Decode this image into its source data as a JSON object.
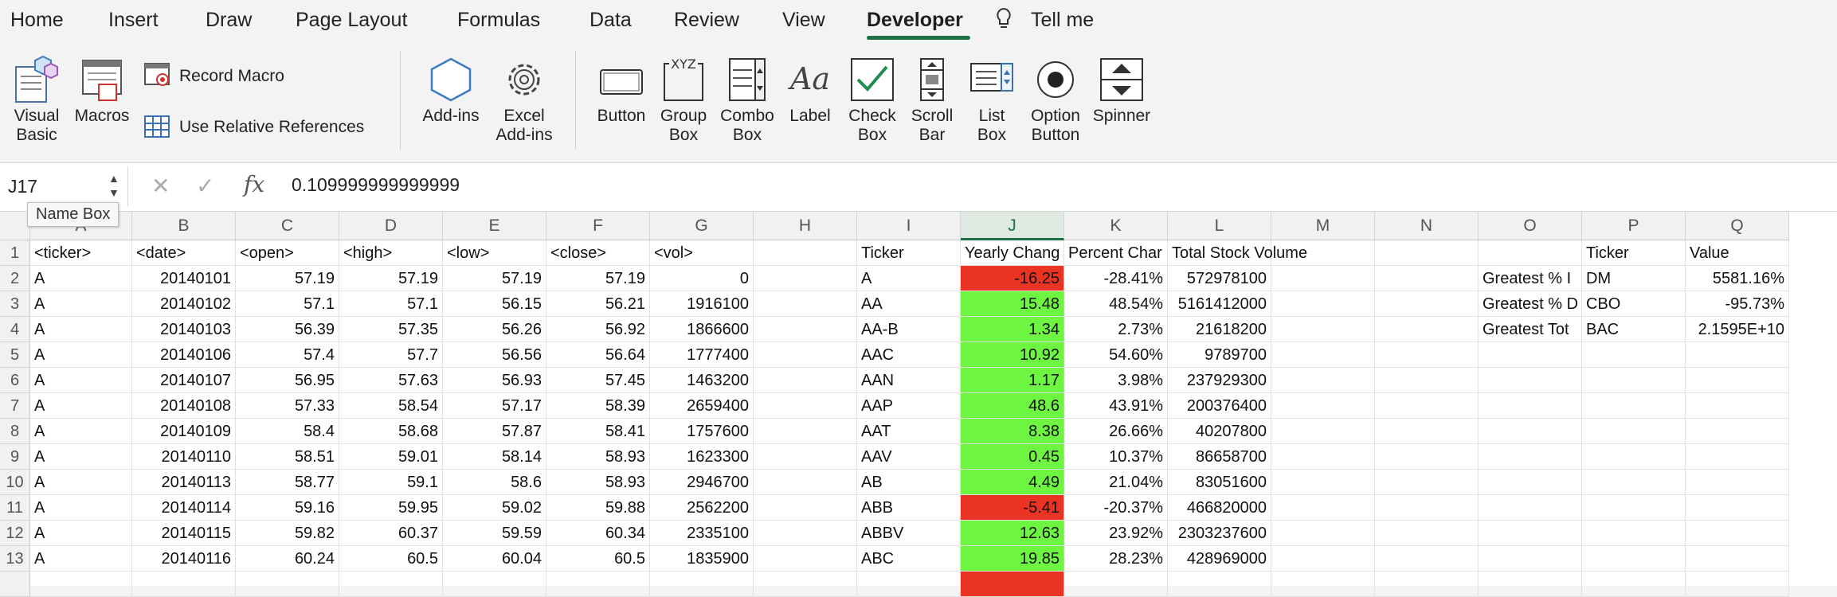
{
  "tabs": [
    "Home",
    "Insert",
    "Draw",
    "Page Layout",
    "Formulas",
    "Data",
    "Review",
    "View",
    "Developer",
    "Tell me"
  ],
  "active_tab": "Developer",
  "ribbon": {
    "visual_basic": [
      "Visual",
      "Basic"
    ],
    "macros": "Macros",
    "record_macro": "Record Macro",
    "use_relative": "Use Relative References",
    "add_ins": "Add-ins",
    "excel_add_ins": [
      "Excel",
      "Add-ins"
    ],
    "button": "Button",
    "group_box": [
      "Group",
      "Box"
    ],
    "combo_box": [
      "Combo",
      "Box"
    ],
    "label": "Label",
    "check_box": [
      "Check",
      "Box"
    ],
    "scroll_bar": [
      "Scroll",
      "Bar"
    ],
    "list_box": [
      "List",
      "Box"
    ],
    "option_button": [
      "Option",
      "Button"
    ],
    "spinner": "Spinner",
    "xyz_text": "XYZ",
    "aa_text": "Aa"
  },
  "formula_bar": {
    "name_box": "J17",
    "name_box_tooltip": "Name Box",
    "value": "0.109999999999999",
    "fx": "fx",
    "cancel": "✕",
    "enter": "✓"
  },
  "colors": {
    "accent": "#1e7145",
    "positive": "#6ef542",
    "negative": "#ea3323"
  },
  "columns": [
    "A",
    "B",
    "C",
    "D",
    "E",
    "F",
    "G",
    "H",
    "I",
    "J",
    "K",
    "L",
    "M",
    "N",
    "O",
    "P",
    "Q"
  ],
  "selected_column": "J",
  "rows": [
    {
      "n": "1",
      "cells": [
        "<ticker>",
        "<date>",
        "<open>",
        "<high>",
        "<low>",
        "<close>",
        "<vol>",
        "",
        "Ticker",
        "Yearly Chang",
        "Percent Char",
        "Total Stock Volume",
        "",
        "",
        "",
        "Ticker",
        "Value"
      ],
      "fill": ""
    },
    {
      "n": "2",
      "cells": [
        "A",
        "20140101",
        "57.19",
        "57.19",
        "57.19",
        "57.19",
        "0",
        "",
        "A",
        "-16.25",
        "-28.41%",
        "572978100",
        "",
        "",
        "Greatest % I",
        "DM",
        "5581.16%"
      ],
      "fill": "neg"
    },
    {
      "n": "3",
      "cells": [
        "A",
        "20140102",
        "57.1",
        "57.1",
        "56.15",
        "56.21",
        "1916100",
        "",
        "AA",
        "15.48",
        "48.54%",
        "5161412000",
        "",
        "",
        "Greatest % D",
        "CBO",
        "-95.73%"
      ],
      "fill": "pos"
    },
    {
      "n": "4",
      "cells": [
        "A",
        "20140103",
        "56.39",
        "57.35",
        "56.26",
        "56.92",
        "1866600",
        "",
        "AA-B",
        "1.34",
        "2.73%",
        "21618200",
        "",
        "",
        "Greatest Tot",
        "BAC",
        "2.1595E+10"
      ],
      "fill": "pos"
    },
    {
      "n": "5",
      "cells": [
        "A",
        "20140106",
        "57.4",
        "57.7",
        "56.56",
        "56.64",
        "1777400",
        "",
        "AAC",
        "10.92",
        "54.60%",
        "9789700",
        "",
        "",
        "",
        "",
        ""
      ],
      "fill": "pos"
    },
    {
      "n": "6",
      "cells": [
        "A",
        "20140107",
        "56.95",
        "57.63",
        "56.93",
        "57.45",
        "1463200",
        "",
        "AAN",
        "1.17",
        "3.98%",
        "237929300",
        "",
        "",
        "",
        "",
        ""
      ],
      "fill": "pos"
    },
    {
      "n": "7",
      "cells": [
        "A",
        "20140108",
        "57.33",
        "58.54",
        "57.17",
        "58.39",
        "2659400",
        "",
        "AAP",
        "48.6",
        "43.91%",
        "200376400",
        "",
        "",
        "",
        "",
        ""
      ],
      "fill": "pos"
    },
    {
      "n": "8",
      "cells": [
        "A",
        "20140109",
        "58.4",
        "58.68",
        "57.87",
        "58.41",
        "1757600",
        "",
        "AAT",
        "8.38",
        "26.66%",
        "40207800",
        "",
        "",
        "",
        "",
        ""
      ],
      "fill": "pos"
    },
    {
      "n": "9",
      "cells": [
        "A",
        "20140110",
        "58.51",
        "59.01",
        "58.14",
        "58.93",
        "1623300",
        "",
        "AAV",
        "0.45",
        "10.37%",
        "86658700",
        "",
        "",
        "",
        "",
        ""
      ],
      "fill": "pos"
    },
    {
      "n": "10",
      "cells": [
        "A",
        "20140113",
        "58.77",
        "59.1",
        "58.6",
        "58.93",
        "2946700",
        "",
        "AB",
        "4.49",
        "21.04%",
        "83051600",
        "",
        "",
        "",
        "",
        ""
      ],
      "fill": "pos"
    },
    {
      "n": "11",
      "cells": [
        "A",
        "20140114",
        "59.16",
        "59.95",
        "59.02",
        "59.88",
        "2562200",
        "",
        "ABB",
        "-5.41",
        "-20.37%",
        "466820000",
        "",
        "",
        "",
        "",
        ""
      ],
      "fill": "neg"
    },
    {
      "n": "12",
      "cells": [
        "A",
        "20140115",
        "59.82",
        "60.37",
        "59.59",
        "60.34",
        "2335100",
        "",
        "ABBV",
        "12.63",
        "23.92%",
        "2303237600",
        "",
        "",
        "",
        "",
        ""
      ],
      "fill": "pos"
    },
    {
      "n": "13",
      "cells": [
        "A",
        "20140116",
        "60.24",
        "60.5",
        "60.04",
        "60.5",
        "1835900",
        "",
        "ABC",
        "19.85",
        "28.23%",
        "428969000",
        "",
        "",
        "",
        "",
        ""
      ],
      "fill": "pos"
    },
    {
      "n": "",
      "cells": [
        "",
        "",
        "",
        "",
        "",
        "",
        "",
        "",
        "",
        "",
        "",
        "",
        "",
        "",
        "",
        "",
        ""
      ],
      "fill": "neg"
    }
  ]
}
